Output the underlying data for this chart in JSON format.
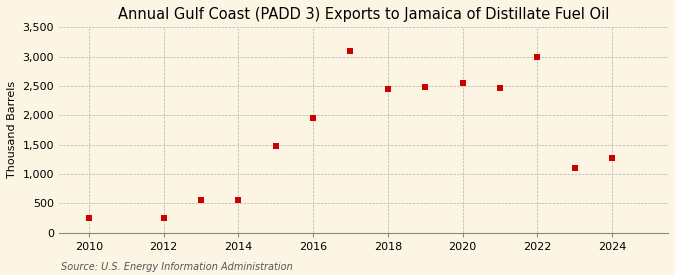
{
  "title": "Annual Gulf Coast (PADD 3) Exports to Jamaica of Distillate Fuel Oil",
  "ylabel": "Thousand Barrels",
  "source": "Source: U.S. Energy Information Administration",
  "x": [
    2010,
    2012,
    2013,
    2014,
    2015,
    2016,
    2017,
    2018,
    2019,
    2020,
    2021,
    2022,
    2023,
    2024
  ],
  "y": [
    248,
    252,
    549,
    549,
    1480,
    1960,
    3100,
    2450,
    2490,
    2550,
    2470,
    3000,
    1100,
    1270
  ],
  "marker_color": "#cc0000",
  "marker": "s",
  "marker_size": 4,
  "xlim": [
    2009.2,
    2025.5
  ],
  "ylim": [
    0,
    3500
  ],
  "yticks": [
    0,
    500,
    1000,
    1500,
    2000,
    2500,
    3000,
    3500
  ],
  "xticks": [
    2010,
    2012,
    2014,
    2016,
    2018,
    2020,
    2022,
    2024
  ],
  "background_color": "#fdf5e4",
  "grid_color": "#aaaaaa",
  "title_fontsize": 10.5,
  "label_fontsize": 8,
  "tick_fontsize": 8,
  "source_fontsize": 7
}
